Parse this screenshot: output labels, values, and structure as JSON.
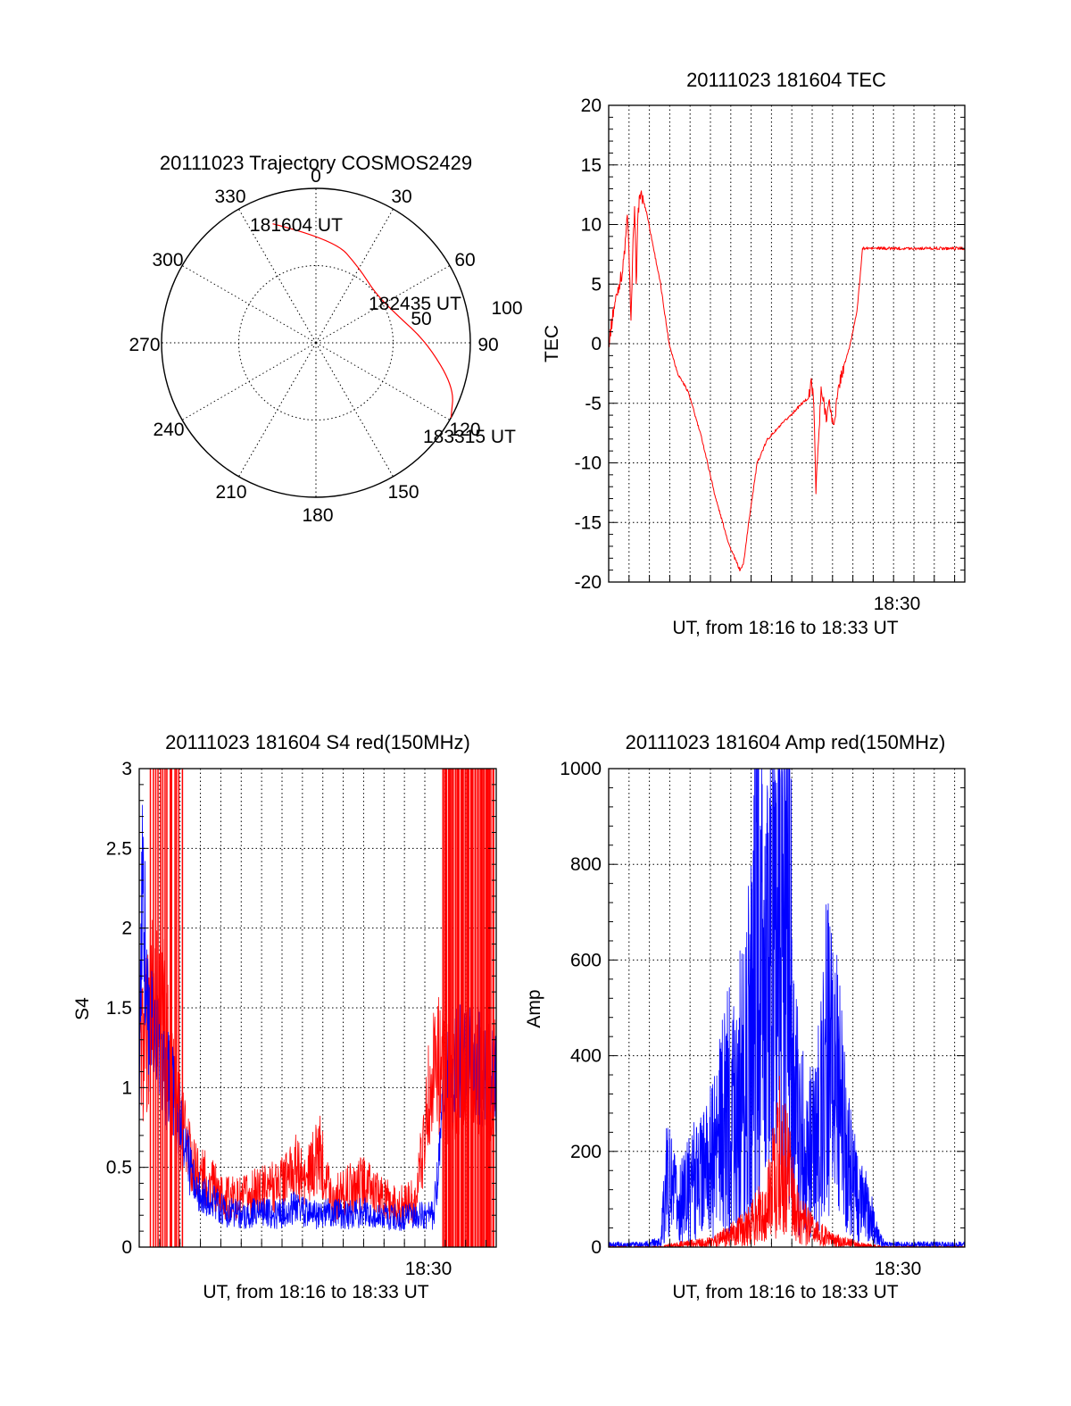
{
  "colors": {
    "red": "#ff0000",
    "blue": "#0000ff",
    "axes": "#000000"
  },
  "chart_data": [
    {
      "type": "polar",
      "title": "20111023 Trajectory COSMOS2429",
      "angle_labels": [
        "0",
        "30",
        "60",
        "90",
        "120",
        "150",
        "180",
        "210",
        "240",
        "270",
        "300",
        "330"
      ],
      "radial_labels": [
        "50",
        "100"
      ],
      "rlim": [
        0,
        100
      ],
      "grid": true,
      "trajectory": {
        "series_color": "#ff0000",
        "points": [
          [
            -20,
            82
          ],
          [
            10,
            68
          ],
          [
            30,
            56
          ],
          [
            50,
            50
          ],
          [
            70,
            55
          ],
          [
            90,
            72
          ],
          [
            108,
            94
          ],
          [
            119,
            100
          ]
        ]
      },
      "annotations": [
        {
          "text": "181604 UT",
          "at": [
            -20,
            82
          ]
        },
        {
          "text": "182435 UT",
          "at": [
            50,
            50
          ]
        },
        {
          "text": "183315 UT",
          "at": [
            119,
            100
          ]
        }
      ]
    },
    {
      "type": "line",
      "title": "20111023 181604 TEC",
      "xlabel": "UT, from 18:16 to 18:33 UT",
      "ylabel": "TEC",
      "xlim": [
        0,
        1031
      ],
      "ylim": [
        -20,
        20
      ],
      "yticks": [
        -20,
        -15,
        -10,
        -5,
        0,
        5,
        10,
        15,
        20
      ],
      "xtick_label": "18:30",
      "xtick_pos": 836,
      "grid": true,
      "series": [
        {
          "color": "#ff0000",
          "points": [
            [
              0,
              0
            ],
            [
              15,
              3
            ],
            [
              30,
              5
            ],
            [
              40,
              6
            ],
            [
              50,
              9
            ],
            [
              55,
              11
            ],
            [
              60,
              6
            ],
            [
              65,
              2
            ],
            [
              70,
              8
            ],
            [
              75,
              11
            ],
            [
              80,
              5
            ],
            [
              85,
              11
            ],
            [
              90,
              12.5
            ],
            [
              100,
              12
            ],
            [
              110,
              11
            ],
            [
              130,
              8
            ],
            [
              150,
              5
            ],
            [
              175,
              0
            ],
            [
              200,
              -2.5
            ],
            [
              230,
              -4
            ],
            [
              270,
              -8
            ],
            [
              310,
              -13
            ],
            [
              350,
              -17
            ],
            [
              380,
              -19
            ],
            [
              390,
              -18.5
            ],
            [
              410,
              -14
            ],
            [
              430,
              -10
            ],
            [
              460,
              -8
            ],
            [
              510,
              -6.5
            ],
            [
              560,
              -5
            ],
            [
              580,
              -4.5
            ],
            [
              588,
              -3
            ],
            [
              595,
              -6
            ],
            [
              600,
              -12
            ],
            [
              608,
              -8
            ],
            [
              615,
              -4
            ],
            [
              630,
              -6
            ],
            [
              640,
              -5
            ],
            [
              650,
              -7
            ],
            [
              670,
              -3
            ],
            [
              700,
              0
            ],
            [
              720,
              3
            ],
            [
              735,
              8
            ]
          ]
        }
      ]
    },
    {
      "type": "line",
      "title": "20111023 181604 S4 red(150MHz)",
      "xlabel": "UT, from 18:16 to 18:33 UT",
      "ylabel": "S4",
      "xlim": [
        0,
        1031
      ],
      "ylim": [
        0,
        3
      ],
      "yticks": [
        0,
        0.5,
        1,
        1.5,
        2,
        2.5,
        3
      ],
      "ytick_labels": [
        "0",
        "0.5",
        "1",
        "1.5",
        "2",
        "2.5",
        "3"
      ],
      "xtick_label": "18:30",
      "xtick_pos": 836,
      "grid": true,
      "series": [
        {
          "color": "#ff0000",
          "points": [
            [
              0,
              1.2
            ],
            [
              20,
              1.3
            ],
            [
              40,
              1.6
            ],
            [
              60,
              1.5
            ],
            [
              80,
              1.3
            ],
            [
              100,
              1.1
            ],
            [
              120,
              0.8
            ],
            [
              140,
              0.6
            ],
            [
              160,
              0.5
            ],
            [
              180,
              0.45
            ],
            [
              200,
              0.4
            ],
            [
              250,
              0.3
            ],
            [
              300,
              0.3
            ],
            [
              350,
              0.35
            ],
            [
              400,
              0.4
            ],
            [
              430,
              0.45
            ],
            [
              450,
              0.5
            ],
            [
              480,
              0.4
            ],
            [
              520,
              0.6
            ],
            [
              560,
              0.3
            ],
            [
              600,
              0.35
            ],
            [
              650,
              0.4
            ],
            [
              700,
              0.3
            ],
            [
              750,
              0.25
            ],
            [
              800,
              0.3
            ],
            [
              850,
              1.2
            ],
            [
              900,
              1.0
            ],
            [
              950,
              1.1
            ],
            [
              1000,
              1.0
            ],
            [
              1031,
              1.1
            ]
          ]
        },
        {
          "color": "#0000ff",
          "points": [
            [
              0,
              1.0
            ],
            [
              10,
              2.4
            ],
            [
              20,
              1.6
            ],
            [
              30,
              1.3
            ],
            [
              50,
              1.4
            ],
            [
              70,
              1.1
            ],
            [
              90,
              1.0
            ],
            [
              110,
              0.85
            ],
            [
              130,
              0.7
            ],
            [
              150,
              0.45
            ],
            [
              170,
              0.35
            ],
            [
              200,
              0.3
            ],
            [
              250,
              0.22
            ],
            [
              300,
              0.2
            ],
            [
              350,
              0.22
            ],
            [
              400,
              0.2
            ],
            [
              450,
              0.25
            ],
            [
              500,
              0.2
            ],
            [
              550,
              0.22
            ],
            [
              600,
              0.2
            ],
            [
              650,
              0.22
            ],
            [
              700,
              0.2
            ],
            [
              750,
              0.18
            ],
            [
              800,
              0.2
            ],
            [
              850,
              0.2
            ],
            [
              870,
              0.6
            ],
            [
              880,
              1.0
            ],
            [
              900,
              1.1
            ],
            [
              950,
              1.2
            ],
            [
              1000,
              1.1
            ],
            [
              1031,
              1.0
            ]
          ]
        }
      ]
    },
    {
      "type": "line",
      "title": "20111023 181604 Amp red(150MHz)",
      "xlabel": "UT, from 18:16 to 18:33 UT",
      "ylabel": "Amp",
      "xlim": [
        0,
        1031
      ],
      "ylim": [
        0,
        1000
      ],
      "yticks": [
        0,
        200,
        400,
        600,
        800,
        1000
      ],
      "xtick_label": "18:30",
      "xtick_pos": 836,
      "grid": true,
      "series": [
        {
          "color": "#0000ff",
          "points": [
            [
              0,
              5
            ],
            [
              100,
              5
            ],
            [
              150,
              10
            ],
            [
              170,
              150
            ],
            [
              200,
              80
            ],
            [
              250,
              150
            ],
            [
              300,
              180
            ],
            [
              350,
              300
            ],
            [
              400,
              350
            ],
            [
              430,
              650
            ],
            [
              450,
              500
            ],
            [
              480,
              600
            ],
            [
              510,
              900
            ],
            [
              540,
              300
            ],
            [
              570,
              200
            ],
            [
              600,
              200
            ],
            [
              630,
              400
            ],
            [
              660,
              350
            ],
            [
              690,
              200
            ],
            [
              720,
              100
            ],
            [
              750,
              80
            ],
            [
              780,
              20
            ],
            [
              800,
              5
            ],
            [
              1031,
              5
            ]
          ]
        },
        {
          "color": "#ff0000",
          "points": [
            [
              0,
              0
            ],
            [
              150,
              0
            ],
            [
              200,
              5
            ],
            [
              300,
              10
            ],
            [
              400,
              40
            ],
            [
              450,
              80
            ],
            [
              500,
              200
            ],
            [
              550,
              60
            ],
            [
              600,
              30
            ],
            [
              650,
              15
            ],
            [
              700,
              8
            ],
            [
              750,
              3
            ],
            [
              800,
              0
            ],
            [
              1031,
              0
            ]
          ]
        }
      ]
    }
  ]
}
